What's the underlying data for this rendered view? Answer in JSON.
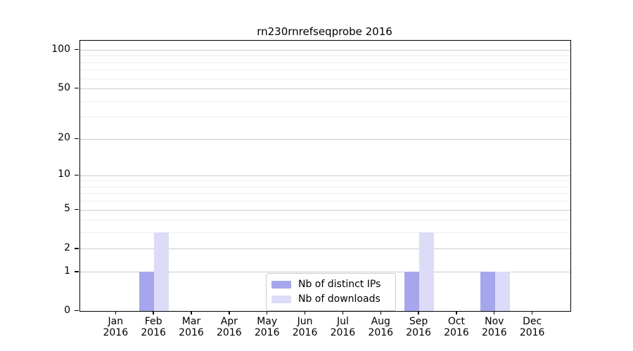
{
  "chart_data": {
    "type": "bar",
    "title": "rn230rnrefseqprobe 2016",
    "categories": [
      "Jan 2016",
      "Feb 2016",
      "Mar 2016",
      "Apr 2016",
      "May 2016",
      "Jun 2016",
      "Jul 2016",
      "Aug 2016",
      "Sep 2016",
      "Oct 2016",
      "Nov 2016",
      "Dec 2016"
    ],
    "series": [
      {
        "name": "Nb of distinct IPs",
        "color": "#a6a6ee",
        "values": [
          0,
          1,
          0,
          0,
          0,
          0,
          0,
          0,
          1,
          0,
          1,
          0
        ]
      },
      {
        "name": "Nb of downloads",
        "color": "#dcdcf8",
        "values": [
          0,
          3,
          0,
          0,
          0,
          0,
          0,
          0,
          3,
          0,
          1,
          0
        ]
      }
    ],
    "xlabel": "",
    "ylabel": "",
    "yscale": "log10(value+1)",
    "ylim": [
      0,
      117
    ],
    "yticks": [
      0,
      1,
      2,
      5,
      10,
      20,
      50,
      100
    ],
    "minor_yticks": [
      3,
      4,
      6,
      7,
      8,
      9,
      30,
      40,
      60,
      70,
      80,
      90
    ],
    "grid": "horizontal",
    "legend_position": "lower center"
  },
  "colors": {
    "background": "#ffffff",
    "bar_distinct_ips": "#a6a6ee",
    "bar_downloads": "#dcdcf8",
    "major_grid": "#cccccc",
    "minor_grid": "#ededed",
    "axis": "#000000",
    "text": "#000000"
  }
}
